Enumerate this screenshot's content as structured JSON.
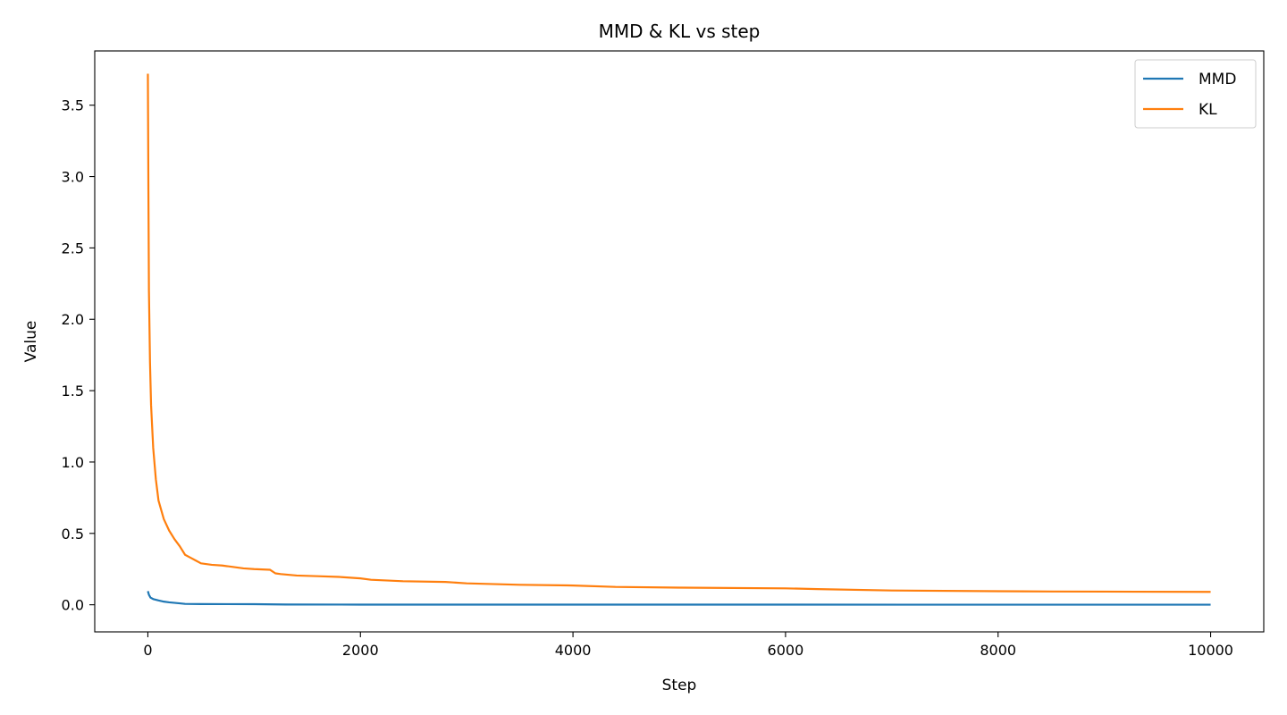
{
  "chart_data": {
    "type": "line",
    "title": "MMD & KL vs step",
    "xlabel": "Step",
    "ylabel": "Value",
    "xlim": [
      -500,
      10500
    ],
    "ylim": [
      -0.19,
      3.88
    ],
    "xticks": [
      0,
      2000,
      4000,
      6000,
      8000,
      10000
    ],
    "xtick_labels": [
      "0",
      "2000",
      "4000",
      "6000",
      "8000",
      "10000"
    ],
    "yticks": [
      0.0,
      0.5,
      1.0,
      1.5,
      2.0,
      2.5,
      3.0,
      3.5
    ],
    "ytick_labels": [
      "0.0",
      "0.5",
      "1.0",
      "1.5",
      "2.0",
      "2.5",
      "3.0",
      "3.5"
    ],
    "grid": false,
    "legend": "top-right",
    "series": [
      {
        "name": "MMD",
        "color": "#1f77b4",
        "x": [
          0,
          10,
          25,
          50,
          100,
          150,
          200,
          300,
          350,
          500,
          1000,
          1300,
          2000,
          4000,
          6000,
          8000,
          10000
        ],
        "y": [
          0.095,
          0.07,
          0.05,
          0.04,
          0.03,
          0.022,
          0.017,
          0.01,
          0.006,
          0.005,
          0.004,
          0.002,
          0.001,
          0.001,
          0.0008,
          0.0006,
          0.0005
        ]
      },
      {
        "name": "KL",
        "color": "#ff7f0e",
        "x": [
          0,
          5,
          10,
          20,
          30,
          50,
          75,
          100,
          150,
          200,
          250,
          300,
          350,
          400,
          450,
          500,
          600,
          700,
          800,
          900,
          1000,
          1150,
          1200,
          1250,
          1400,
          1600,
          1800,
          2000,
          2100,
          2400,
          2800,
          3000,
          3500,
          4000,
          4400,
          5000,
          6000,
          6300,
          7000,
          8000,
          8500,
          9000,
          10000
        ],
        "y": [
          3.72,
          2.9,
          2.2,
          1.7,
          1.4,
          1.1,
          0.88,
          0.73,
          0.6,
          0.52,
          0.46,
          0.41,
          0.35,
          0.33,
          0.31,
          0.29,
          0.28,
          0.275,
          0.265,
          0.255,
          0.25,
          0.245,
          0.22,
          0.215,
          0.205,
          0.2,
          0.195,
          0.185,
          0.175,
          0.165,
          0.16,
          0.15,
          0.14,
          0.135,
          0.125,
          0.12,
          0.115,
          0.11,
          0.1,
          0.095,
          0.093,
          0.092,
          0.09
        ]
      }
    ]
  }
}
